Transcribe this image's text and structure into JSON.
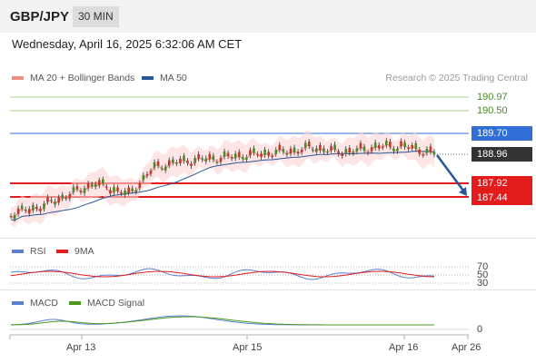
{
  "header": {
    "symbol": "GBP/JPY",
    "timeframe": "30 MIN"
  },
  "datetime": "Wednesday, April 16, 2025 6:32:06 AM CET",
  "legend_main": [
    {
      "label": "MA 20 + Bollinger Bands",
      "color": "#f28b82"
    },
    {
      "label": "MA 50",
      "color": "#2b5797"
    }
  ],
  "credit": "Research © 2025 Trading Central",
  "levels": {
    "r2": "190.97",
    "r1": "190.50",
    "pivot": "189.70",
    "current": "188.96",
    "s1": "187.92",
    "s2": "187.44"
  },
  "colors": {
    "resistance": "#8cc665",
    "pivot": "#2f6fd6",
    "current": "#333333",
    "support": "#e31b1b",
    "candle_up": "#4a8a2a",
    "candle_down": "#c0392b",
    "arrow": "#2b5797"
  },
  "legend_rsi": [
    {
      "label": "RSI",
      "color": "#5b7fd6"
    },
    {
      "label": "9MA",
      "color": "#e31b1b"
    }
  ],
  "rsi_levels": [
    "70",
    "50",
    "30"
  ],
  "legend_macd": [
    {
      "label": "MACD",
      "color": "#5b7fd6"
    },
    {
      "label": "MACD Signal",
      "color": "#4a9a1a"
    }
  ],
  "macd_zero": "0",
  "x_axis": [
    "Apr 13",
    "Apr 15",
    "Apr 16",
    "Apr 26"
  ]
}
